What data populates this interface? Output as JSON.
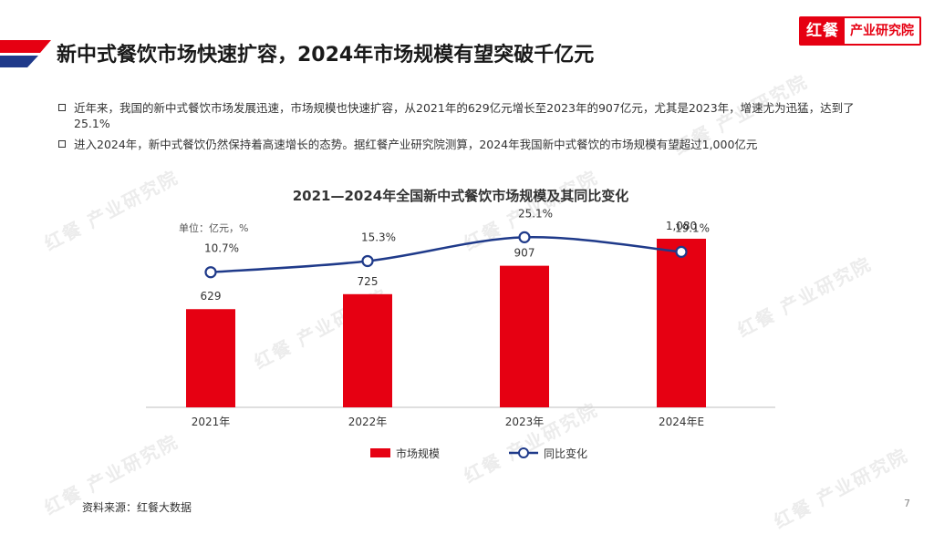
{
  "header": {
    "title": "新中式餐饮市场快速扩容，2024年市场规模有望突破千亿元",
    "brand_mark": "红餐",
    "brand_text": "产业研究院",
    "accent_red": "#e60012",
    "accent_blue": "#1f3a8a"
  },
  "bullets": [
    "近年来，我国的新中式餐饮市场发展迅速，市场规模也快速扩容，从2021年的629亿元增长至2023年的907亿元，尤其是2023年，增速尤为迅猛，达到了25.1%",
    "进入2024年，新中式餐饮仍然保持着高速增长的态势。据红餐产业研究院测算，2024年我国新中式餐饮的市场规模有望超过1,000亿元"
  ],
  "watermark_text": "红餐 产业研究院",
  "chart_data": {
    "type": "bar",
    "title": "2021—2024年全国新中式餐饮市场规模及其同比变化",
    "unit_label": "单位：亿元，%",
    "categories": [
      "2021年",
      "2022年",
      "2023年",
      "2024年E"
    ],
    "series": [
      {
        "name": "市场规模",
        "type": "bar",
        "values": [
          629,
          725,
          907,
          1080
        ],
        "labels": [
          "629",
          "725",
          "907",
          "1,080"
        ],
        "color": "#e60012"
      },
      {
        "name": "同比变化",
        "type": "line",
        "values": [
          10.7,
          15.3,
          25.1,
          19.1
        ],
        "labels": [
          "10.7%",
          "15.3%",
          "25.1%",
          "19.1%"
        ],
        "color": "#1f3a8a"
      }
    ],
    "bar_ylim": [
      0,
      1150
    ],
    "line_ylim": [
      -45,
      29
    ],
    "grid": false,
    "legend": "bottom-center"
  },
  "footer": {
    "source": "资料来源：红餐大数据",
    "page": "7"
  }
}
